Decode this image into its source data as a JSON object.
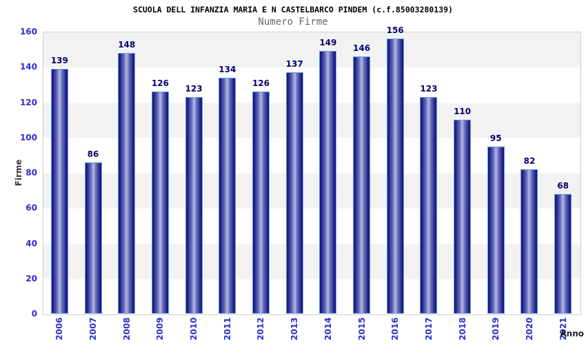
{
  "header": {
    "title": "SCUOLA DELL INFANZIA MARIA E N CASTELBARCO PINDEM (c.f.85003280139)",
    "subtitle": "Numero Firme"
  },
  "chart_data": {
    "type": "bar",
    "title": "SCUOLA DELL INFANZIA MARIA E N CASTELBARCO PINDEM (c.f.85003280139)",
    "subtitle": "Numero Firme",
    "categories": [
      "2006",
      "2007",
      "2008",
      "2009",
      "2010",
      "2011",
      "2012",
      "2013",
      "2014",
      "2015",
      "2016",
      "2017",
      "2018",
      "2019",
      "2020",
      "2021"
    ],
    "values": [
      139,
      86,
      148,
      126,
      123,
      134,
      126,
      137,
      149,
      146,
      156,
      123,
      110,
      95,
      82,
      68
    ],
    "xlabel": "Anno",
    "ylabel": "Firme",
    "ylim": [
      0,
      160
    ],
    "ytick_step": 20,
    "yticks": [
      0,
      20,
      40,
      60,
      80,
      100,
      120,
      140,
      160
    ],
    "grid": "alternating-horizontal-bands",
    "legend": "none",
    "value_labels": "above-bars",
    "colors": {
      "bar_dark": "#14147a",
      "bar_light": "#b3bae6",
      "bar_border": "#69a1e2",
      "tick_label": "#2d2dd0",
      "value_label": "#00006b",
      "band_gray": "#f2f2f2",
      "band_white": "#ffffff",
      "plot_border": "#cfcfcf",
      "title": "#000000",
      "subtitle": "#666666",
      "axis_label": "#333333"
    }
  }
}
